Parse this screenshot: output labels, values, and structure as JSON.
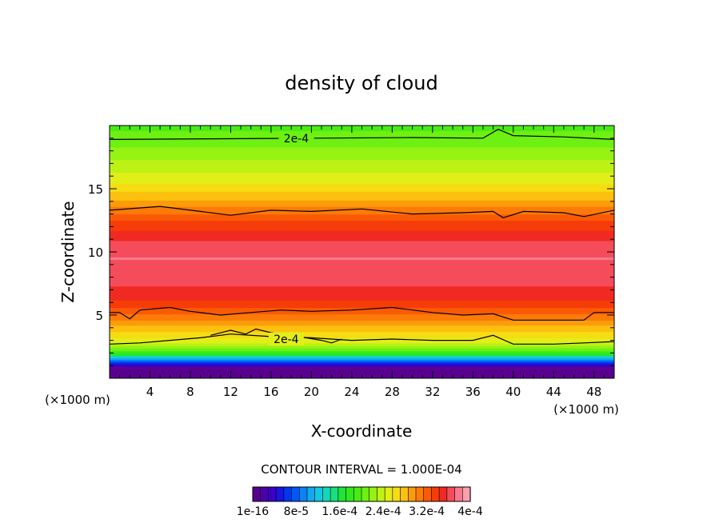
{
  "chart_data": {
    "type": "heatmap",
    "title": "density of cloud",
    "xlabel": "X-coordinate",
    "ylabel": "Z-coordinate",
    "x_unit_left": "(×1000 m)",
    "x_unit_right": "(×1000 m)",
    "xlim": [
      0,
      50
    ],
    "ylim": [
      0,
      20
    ],
    "x_ticks": [
      4,
      8,
      12,
      16,
      20,
      24,
      28,
      32,
      36,
      40,
      44,
      48
    ],
    "y_ticks": [
      5,
      10,
      15
    ],
    "contour_interval_text": "CONTOUR INTERVAL = 1.000E-04",
    "contour_labels": [
      {
        "text": "2e-4",
        "x": 18.5,
        "z": 19.0
      },
      {
        "text": "2e-4",
        "x": 17.5,
        "z": 3.1
      }
    ],
    "colorbar": {
      "min": 1e-16,
      "max": 0.0004,
      "levels": 27,
      "labels": [
        "1e-16",
        "8e-5",
        "1.6e-4",
        "2.4e-4",
        "3.2e-4",
        "4e-4"
      ],
      "label_positions": [
        0,
        0.2,
        0.4,
        0.6,
        0.8,
        1.0
      ],
      "colors": [
        "#5a0091",
        "#4b00a8",
        "#3a00c8",
        "#1a14e0",
        "#0036f2",
        "#0058f7",
        "#0a82f4",
        "#12a8ee",
        "#10c8e4",
        "#10d8b8",
        "#18df7e",
        "#20e43a",
        "#30e81e",
        "#48ec14",
        "#6ef012",
        "#96f212",
        "#bef214",
        "#e2ee18",
        "#f6dc12",
        "#fcc00e",
        "#fc9c0a",
        "#fc7a08",
        "#fa5a06",
        "#f63c08",
        "#f02a22",
        "#f44c5a",
        "#f87890",
        "#fca0ac"
      ]
    },
    "bands": [
      {
        "z": 0.0,
        "value": 0.0
      },
      {
        "z": 0.7,
        "value": 0.0
      },
      {
        "z": 0.9,
        "value": 0.04
      },
      {
        "z": 1.2,
        "value": 0.16
      },
      {
        "z": 1.6,
        "value": 0.3
      },
      {
        "z": 2.0,
        "value": 0.45
      },
      {
        "z": 2.5,
        "value": 0.56
      },
      {
        "z": 3.0,
        "value": 0.63
      },
      {
        "z": 4.0,
        "value": 0.7
      },
      {
        "z": 5.0,
        "value": 0.78
      },
      {
        "z": 6.0,
        "value": 0.85
      },
      {
        "z": 7.5,
        "value": 0.9
      },
      {
        "z": 9.5,
        "value": 0.93
      },
      {
        "z": 11.0,
        "value": 0.89
      },
      {
        "z": 12.5,
        "value": 0.82
      },
      {
        "z": 14.0,
        "value": 0.72
      },
      {
        "z": 15.5,
        "value": 0.64
      },
      {
        "z": 17.0,
        "value": 0.58
      },
      {
        "z": 18.5,
        "value": 0.53
      },
      {
        "z": 20.0,
        "value": 0.49
      }
    ],
    "contours": [
      {
        "level": 0.0002,
        "points": [
          [
            0,
            18.9
          ],
          [
            10,
            18.95
          ],
          [
            20,
            19.0
          ],
          [
            30,
            19.05
          ],
          [
            37,
            19.0
          ],
          [
            38.5,
            19.7
          ],
          [
            40,
            19.2
          ],
          [
            45,
            19.1
          ],
          [
            50,
            18.9
          ]
        ]
      },
      {
        "level": 0.0002,
        "points": [
          [
            0,
            13.3
          ],
          [
            5,
            13.6
          ],
          [
            9,
            13.2
          ],
          [
            12,
            12.9
          ],
          [
            16,
            13.3
          ],
          [
            20,
            13.2
          ],
          [
            25,
            13.4
          ],
          [
            30,
            13.0
          ],
          [
            35,
            13.1
          ],
          [
            38,
            13.2
          ],
          [
            39,
            12.7
          ],
          [
            41,
            13.2
          ],
          [
            45,
            13.1
          ],
          [
            47,
            12.8
          ],
          [
            50,
            13.3
          ]
        ]
      },
      {
        "level": 0.0002,
        "points": [
          [
            0,
            5.2
          ],
          [
            1,
            5.2
          ],
          [
            2,
            4.7
          ],
          [
            3,
            5.4
          ],
          [
            6,
            5.6
          ],
          [
            8,
            5.3
          ],
          [
            11,
            5.0
          ],
          [
            14,
            5.2
          ],
          [
            17,
            5.4
          ],
          [
            20,
            5.3
          ],
          [
            24,
            5.4
          ],
          [
            28,
            5.6
          ],
          [
            32,
            5.2
          ],
          [
            35,
            5.0
          ],
          [
            38,
            5.1
          ],
          [
            40,
            4.6
          ],
          [
            44,
            4.6
          ],
          [
            47,
            4.6
          ],
          [
            48,
            5.2
          ],
          [
            50,
            5.2
          ]
        ]
      },
      {
        "level": 0.0002,
        "points": [
          [
            0,
            2.7
          ],
          [
            3,
            2.8
          ],
          [
            6,
            3.0
          ],
          [
            9,
            3.2
          ],
          [
            12,
            3.5
          ],
          [
            16,
            3.3
          ],
          [
            20,
            3.2
          ],
          [
            24,
            3.0
          ],
          [
            28,
            3.1
          ],
          [
            32,
            3.0
          ],
          [
            36,
            3.0
          ],
          [
            38,
            3.4
          ],
          [
            40,
            2.7
          ],
          [
            44,
            2.7
          ],
          [
            47,
            2.8
          ],
          [
            50,
            2.9
          ]
        ]
      },
      {
        "level": 0.0002,
        "points": [
          [
            10,
            3.4
          ],
          [
            12,
            3.8
          ],
          [
            13.5,
            3.5
          ],
          [
            14.5,
            3.9
          ],
          [
            16,
            3.6
          ],
          [
            18,
            3.4
          ],
          [
            21,
            3.0
          ],
          [
            22,
            2.8
          ],
          [
            23,
            3.1
          ]
        ]
      }
    ]
  }
}
